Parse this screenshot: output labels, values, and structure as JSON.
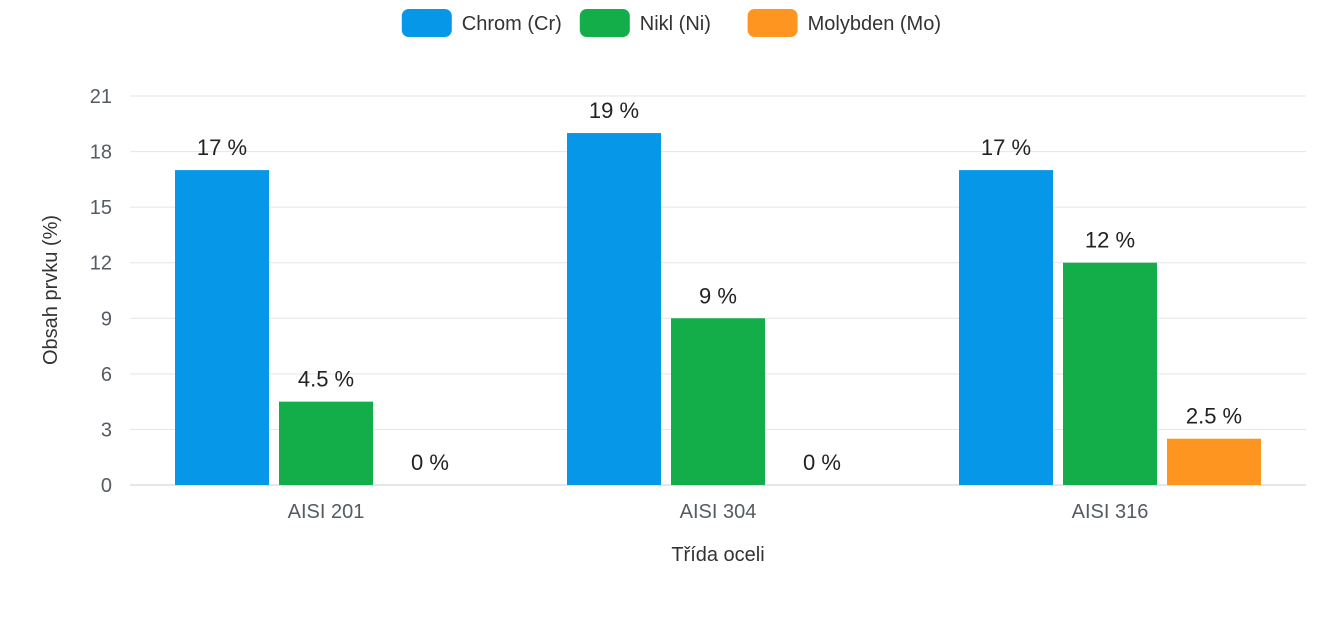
{
  "chart_data": {
    "type": "bar",
    "title": "",
    "xlabel": "Třída oceli",
    "ylabel": "Obsah prvku (%)",
    "ylim": [
      0,
      21
    ],
    "yticks": [
      0,
      3,
      6,
      9,
      12,
      15,
      18,
      21
    ],
    "categories": [
      "AISI 201",
      "AISI 304",
      "AISI 316"
    ],
    "value_suffix": " %",
    "legend_position": "top-center",
    "grid": true,
    "series": [
      {
        "name": "Chrom (Cr)",
        "color": "#0797e8",
        "values": [
          17,
          19,
          17
        ]
      },
      {
        "name": "Nikl (Ni)",
        "color": "#13ad4a",
        "values": [
          4.5,
          9,
          12
        ]
      },
      {
        "name": "Molybden (Mo)",
        "color": "#ff9521",
        "values": [
          0,
          0,
          2.5
        ]
      }
    ]
  }
}
